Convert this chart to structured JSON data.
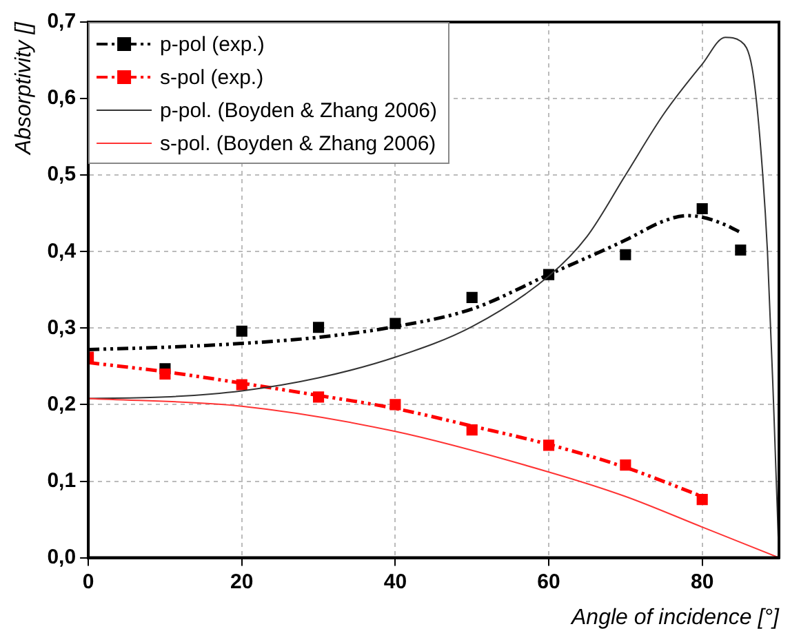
{
  "chart_data": {
    "type": "scatter",
    "xlabel": "Angle of incidence [°]",
    "ylabel": "Absorptivity []",
    "xlim": [
      0,
      90
    ],
    "xticks": [
      0,
      20,
      40,
      60,
      80
    ],
    "ylim": [
      0,
      0.7
    ],
    "yticks": [
      {
        "value": 0,
        "label": "0,0"
      },
      {
        "value": 0.1,
        "label": "0,1"
      },
      {
        "value": 0.2,
        "label": "0,2"
      },
      {
        "value": 0.3,
        "label": "0,3"
      },
      {
        "value": 0.4,
        "label": "0,4"
      },
      {
        "value": 0.5,
        "label": "0,5"
      },
      {
        "value": 0.6,
        "label": "0,6"
      },
      {
        "value": 0.7,
        "label": "0,7"
      }
    ],
    "grid": true,
    "legend": "top left",
    "series": [
      {
        "name": "p-pol (exp.)",
        "type": "scatter",
        "marker": "square",
        "color": "#000000",
        "x": [
          10,
          20,
          30,
          40,
          50,
          60,
          70,
          80,
          85
        ],
        "values": [
          0.247,
          0.296,
          0.301,
          0.306,
          0.34,
          0.37,
          0.396,
          0.456,
          0.402
        ]
      },
      {
        "type": "line",
        "line_style": "dashed",
        "marker": "none",
        "color": "#000000",
        "x": [
          0,
          10,
          20,
          30,
          40,
          50,
          60,
          70,
          75,
          78,
          80,
          83,
          85
        ],
        "values": [
          0.272,
          0.275,
          0.28,
          0.288,
          0.302,
          0.325,
          0.37,
          0.415,
          0.44,
          0.447,
          0.445,
          0.435,
          0.425
        ]
      },
      {
        "name": "s-pol (exp.)",
        "type": "scatter",
        "marker": "square",
        "color": "#ff0000",
        "x": [
          0,
          10,
          20,
          30,
          40,
          50,
          60,
          70,
          80
        ],
        "values": [
          0.262,
          0.24,
          0.226,
          0.21,
          0.2,
          0.167,
          0.147,
          0.121,
          0.076
        ]
      },
      {
        "type": "line",
        "line_style": "dashed",
        "marker": "none",
        "color": "#ff0000",
        "x": [
          0,
          10,
          20,
          30,
          40,
          50,
          60,
          70,
          80
        ],
        "values": [
          0.255,
          0.243,
          0.228,
          0.212,
          0.195,
          0.172,
          0.148,
          0.118,
          0.08
        ]
      },
      {
        "name": "p-pol. (Boyden & Zhang 2006)",
        "type": "line",
        "line_style": "solid",
        "marker": "none",
        "color": "#333333",
        "x": [
          0,
          10,
          20,
          30,
          40,
          50,
          60,
          65,
          70,
          75,
          80,
          83,
          85,
          86.5,
          87.5,
          88.5,
          89.3,
          90
        ],
        "values": [
          0.208,
          0.21,
          0.218,
          0.235,
          0.262,
          0.302,
          0.368,
          0.42,
          0.5,
          0.58,
          0.645,
          0.68,
          0.675,
          0.64,
          0.55,
          0.4,
          0.2,
          0
        ]
      },
      {
        "name": "s-pol. (Boyden & Zhang 2006)",
        "type": "line",
        "line_style": "solid",
        "marker": "none",
        "color": "#ff3333",
        "x": [
          0,
          20,
          40,
          60,
          70,
          80,
          90
        ],
        "values": [
          0.208,
          0.198,
          0.165,
          0.112,
          0.08,
          0.04,
          0
        ]
      }
    ]
  }
}
